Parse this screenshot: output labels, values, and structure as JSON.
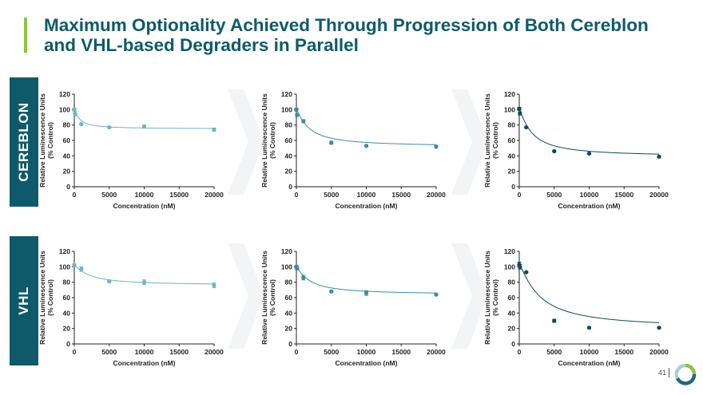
{
  "title": "Maximum Optionality Achieved Through Progression of Both Cereblon and VHL-based Degraders in Parallel",
  "rows": [
    {
      "label": "CEREBLON"
    },
    {
      "label": "VHL"
    }
  ],
  "page_number": "41",
  "colors": {
    "title": "#0e5a6a",
    "accent": "#8cc63f",
    "row_label_bg": "#0e5a6a",
    "series_light": "#6fb3c6",
    "series_mid": "#3e8aa3",
    "series_dark": "#0d4a5c"
  },
  "chart_data": [
    {
      "type": "scatter",
      "row": "CEREBLON",
      "column": 1,
      "xlabel": "Concentration (nM)",
      "ylabel": "Relative Luminescence Units (% Control)",
      "xlim": [
        0,
        20000
      ],
      "ylim": [
        0,
        120
      ],
      "xticks": [
        0,
        5000,
        10000,
        15000,
        20000
      ],
      "yticks": [
        0,
        20,
        40,
        60,
        80,
        100,
        120
      ],
      "color": "#6fb3c6",
      "x": [
        0,
        100,
        1000,
        5000,
        10000,
        20000
      ],
      "y": [
        100,
        95,
        81,
        77,
        78,
        74
      ],
      "err": [
        2,
        3,
        1,
        1,
        2,
        2
      ],
      "fit": {
        "bottom": 75,
        "top": 100,
        "ic50": 800
      }
    },
    {
      "type": "scatter",
      "row": "CEREBLON",
      "column": 2,
      "xlabel": "Concentration (nM)",
      "ylabel": "Relative Luminescence Units (% Control)",
      "xlim": [
        0,
        20000
      ],
      "ylim": [
        0,
        120
      ],
      "xticks": [
        0,
        5000,
        10000,
        15000,
        20000
      ],
      "yticks": [
        0,
        20,
        40,
        60,
        80,
        100,
        120
      ],
      "color": "#3e8aa3",
      "x": [
        0,
        100,
        1000,
        5000,
        10000,
        20000
      ],
      "y": [
        100,
        93,
        85,
        57,
        53,
        52
      ],
      "err": [
        2,
        2,
        2,
        2,
        1,
        1
      ],
      "fit": {
        "bottom": 52,
        "top": 100,
        "ic50": 1800
      }
    },
    {
      "type": "scatter",
      "row": "CEREBLON",
      "column": 3,
      "xlabel": "Concentration (nM)",
      "ylabel": "Relative Luminescence Units (% Control)",
      "xlim": [
        0,
        20000
      ],
      "ylim": [
        0,
        120
      ],
      "xticks": [
        0,
        5000,
        10000,
        15000,
        20000
      ],
      "yticks": [
        0,
        20,
        40,
        60,
        80,
        100,
        120
      ],
      "color": "#0d4a5c",
      "x": [
        0,
        100,
        1000,
        5000,
        10000,
        20000
      ],
      "y": [
        101,
        95,
        77,
        46,
        43,
        39
      ],
      "err": [
        2,
        2,
        1,
        1,
        1,
        1
      ],
      "fit": {
        "bottom": 39,
        "top": 101,
        "ic50": 1800
      }
    },
    {
      "type": "scatter",
      "row": "VHL",
      "column": 1,
      "xlabel": "Concentration (nM)",
      "ylabel": "Relative Luminescence Units (% Control)",
      "xlim": [
        0,
        20000
      ],
      "ylim": [
        0,
        120
      ],
      "xticks": [
        0,
        5000,
        10000,
        15000,
        20000
      ],
      "yticks": [
        0,
        20,
        40,
        60,
        80,
        100,
        120
      ],
      "color": "#6fb3c6",
      "x": [
        0,
        1000,
        5000,
        10000,
        20000
      ],
      "y": [
        102,
        97,
        81,
        80,
        76
      ],
      "err": [
        2,
        3,
        1,
        3,
        3
      ],
      "fit": {
        "bottom": 76,
        "top": 102,
        "ic50": 2200
      }
    },
    {
      "type": "scatter",
      "row": "VHL",
      "column": 2,
      "xlabel": "Concentration (nM)",
      "ylabel": "Relative Luminescence Units (% Control)",
      "xlim": [
        0,
        20000
      ],
      "ylim": [
        0,
        120
      ],
      "xticks": [
        0,
        5000,
        10000,
        15000,
        20000
      ],
      "yticks": [
        0,
        20,
        40,
        60,
        80,
        100,
        120
      ],
      "color": "#3e8aa3",
      "x": [
        0,
        100,
        1000,
        5000,
        10000,
        20000
      ],
      "y": [
        100,
        98,
        86,
        68,
        66,
        64
      ],
      "err": [
        2,
        2,
        3,
        1,
        3,
        1
      ],
      "fit": {
        "bottom": 64,
        "top": 100,
        "ic50": 1900
      }
    },
    {
      "type": "scatter",
      "row": "VHL",
      "column": 3,
      "xlabel": "Concentration (nM)",
      "ylabel": "Relative Luminescence Units (% Control)",
      "xlim": [
        0,
        20000
      ],
      "ylim": [
        0,
        120
      ],
      "xticks": [
        0,
        5000,
        10000,
        15000,
        20000
      ],
      "yticks": [
        0,
        20,
        40,
        60,
        80,
        100,
        120
      ],
      "color": "#0d4a5c",
      "x": [
        0,
        100,
        1000,
        5000,
        10000,
        20000
      ],
      "y": [
        103,
        100,
        93,
        30,
        21,
        21
      ],
      "err": [
        3,
        3,
        1,
        2,
        1,
        1
      ],
      "fit": {
        "bottom": 20,
        "top": 104,
        "ic50": 2900
      }
    }
  ]
}
